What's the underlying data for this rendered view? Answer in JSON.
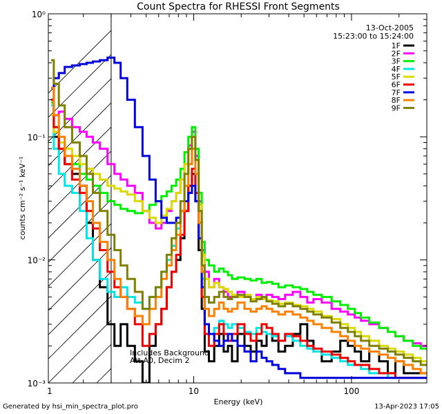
{
  "chart_data": {
    "type": "line",
    "title": "Count Spectra for RHESSI Front Segments",
    "xlabel": "Energy (keV)",
    "ylabel": "counts cm⁻² s⁻¹ keV⁻¹",
    "xscale": "log",
    "yscale": "log",
    "xlim": [
      1.2,
      300
    ],
    "ylim": [
      0.001,
      1
    ],
    "x_tick_labels": [
      "1",
      "10",
      "100"
    ],
    "y_tick_labels": [
      "10⁻³",
      "10⁻²",
      "10⁻¹",
      "10⁰"
    ],
    "date": "13-Oct-2005",
    "time_range": "15:23:00 to 15:24:00",
    "annotation_line1": "Includes Background",
    "annotation_line2": "Att A0, Decim 2",
    "attenuator_cutoff_keV": 3,
    "legend_position": "top-right",
    "x": [
      1.25,
      1.35,
      1.45,
      1.6,
      1.8,
      2.0,
      2.2,
      2.4,
      2.7,
      3.0,
      3.3,
      3.6,
      4.0,
      4.5,
      5.0,
      5.5,
      6.0,
      6.5,
      7.0,
      7.5,
      8.0,
      8.5,
      9.0,
      9.5,
      10.0,
      10.5,
      11.0,
      11.5,
      12.0,
      13.0,
      14.0,
      15.0,
      16.0,
      17.0,
      18.0,
      20.0,
      22.0,
      24.0,
      26.0,
      28.0,
      30.0,
      33.0,
      36.0,
      40.0,
      45.0,
      50.0,
      55.0,
      60.0,
      70.0,
      80.0,
      90.0,
      100.0,
      110.0,
      120.0,
      140.0,
      160.0,
      180.0,
      200.0,
      230.0,
      260.0,
      290.0
    ],
    "series": [
      {
        "name": "1F",
        "color": "#000000",
        "values": [
          0.25,
          0.1,
          0.08,
          0.06,
          0.05,
          0.04,
          0.02,
          0.01,
          0.006,
          0.003,
          0.002,
          0.003,
          0.002,
          0.0015,
          0.001,
          0.002,
          0.003,
          0.004,
          0.006,
          0.008,
          0.01,
          0.015,
          0.025,
          0.04,
          0.05,
          0.03,
          0.012,
          0.004,
          0.0018,
          0.0015,
          0.002,
          0.0025,
          0.0018,
          0.002,
          0.0015,
          0.0025,
          0.002,
          0.0018,
          0.0022,
          0.002,
          0.0025,
          0.0022,
          0.0018,
          0.002,
          0.0025,
          0.003,
          0.0022,
          0.0018,
          0.0015,
          0.0018,
          0.0022,
          0.002,
          0.0018,
          0.0015,
          0.0018,
          0.0015,
          0.0012,
          0.0015,
          0.0012,
          0.0012,
          0.0012
        ]
      },
      {
        "name": "2F",
        "color": "#ff00ff",
        "values": [
          0.2,
          0.15,
          0.16,
          0.14,
          0.12,
          0.11,
          0.1,
          0.09,
          0.08,
          0.06,
          0.05,
          0.045,
          0.04,
          0.035,
          0.025,
          0.02,
          0.018,
          0.02,
          0.025,
          0.03,
          0.035,
          0.045,
          0.06,
          0.085,
          0.11,
          0.07,
          0.03,
          0.012,
          0.008,
          0.006,
          0.007,
          0.006,
          0.0055,
          0.005,
          0.005,
          0.0055,
          0.005,
          0.0048,
          0.0052,
          0.005,
          0.0052,
          0.005,
          0.0048,
          0.0052,
          0.0055,
          0.005,
          0.0045,
          0.0048,
          0.0045,
          0.004,
          0.0038,
          0.0036,
          0.0034,
          0.0032,
          0.003,
          0.0028,
          0.0026,
          0.0024,
          0.0022,
          0.0021,
          0.002
        ]
      },
      {
        "name": "3F",
        "color": "#00ee00",
        "values": [
          0.19,
          0.12,
          0.09,
          0.07,
          0.06,
          0.05,
          0.045,
          0.04,
          0.035,
          0.03,
          0.028,
          0.026,
          0.025,
          0.024,
          0.025,
          0.028,
          0.03,
          0.033,
          0.036,
          0.04,
          0.045,
          0.055,
          0.075,
          0.1,
          0.12,
          0.08,
          0.035,
          0.014,
          0.01,
          0.009,
          0.008,
          0.0085,
          0.008,
          0.0075,
          0.007,
          0.0072,
          0.007,
          0.0068,
          0.007,
          0.0065,
          0.0066,
          0.0064,
          0.006,
          0.0062,
          0.006,
          0.0058,
          0.0055,
          0.0052,
          0.005,
          0.0046,
          0.0043,
          0.004,
          0.0037,
          0.0034,
          0.0031,
          0.0028,
          0.0026,
          0.0024,
          0.0022,
          0.002,
          0.0019
        ]
      },
      {
        "name": "4F",
        "color": "#00e5e5",
        "values": [
          0.18,
          0.08,
          0.05,
          0.04,
          0.035,
          0.025,
          0.015,
          0.01,
          0.007,
          0.0055,
          0.005,
          0.006,
          0.005,
          0.0045,
          0.004,
          0.005,
          0.006,
          0.008,
          0.01,
          0.013,
          0.018,
          0.025,
          0.04,
          0.06,
          0.08,
          0.05,
          0.02,
          0.007,
          0.003,
          0.0025,
          0.0028,
          0.0032,
          0.003,
          0.0028,
          0.003,
          0.0028,
          0.0026,
          0.0025,
          0.0028,
          0.0026,
          0.0025,
          0.0024,
          0.0022,
          0.0024,
          0.0022,
          0.002,
          0.0019,
          0.0018,
          0.0017,
          0.0016,
          0.0015,
          0.0014,
          0.0014,
          0.0013,
          0.0012,
          0.0012,
          0.0011,
          0.0011,
          0.0011,
          0.0011,
          0.0011
        ]
      },
      {
        "name": "5F",
        "color": "#dada00",
        "values": [
          0.15,
          0.11,
          0.09,
          0.08,
          0.07,
          0.06,
          0.055,
          0.05,
          0.045,
          0.04,
          0.038,
          0.036,
          0.034,
          0.03,
          0.025,
          0.022,
          0.02,
          0.023,
          0.026,
          0.03,
          0.035,
          0.045,
          0.06,
          0.08,
          0.1,
          0.065,
          0.028,
          0.011,
          0.007,
          0.006,
          0.0065,
          0.006,
          0.0058,
          0.0055,
          0.0052,
          0.005,
          0.0052,
          0.0048,
          0.005,
          0.0048,
          0.0047,
          0.0046,
          0.0044,
          0.0045,
          0.0043,
          0.0042,
          0.004,
          0.0038,
          0.0035,
          0.0033,
          0.003,
          0.0028,
          0.0026,
          0.0024,
          0.0022,
          0.002,
          0.0019,
          0.0018,
          0.0017,
          0.0016,
          0.0015
        ]
      },
      {
        "name": "6F",
        "color": "#ee0000",
        "values": [
          0.2,
          0.12,
          0.08,
          0.06,
          0.045,
          0.035,
          0.025,
          0.018,
          0.012,
          0.008,
          0.006,
          0.005,
          0.004,
          0.003,
          0.002,
          0.0025,
          0.003,
          0.004,
          0.006,
          0.008,
          0.011,
          0.016,
          0.025,
          0.04,
          0.055,
          0.035,
          0.015,
          0.005,
          0.0025,
          0.002,
          0.0025,
          0.003,
          0.0025,
          0.0022,
          0.0025,
          0.003,
          0.0025,
          0.0022,
          0.0025,
          0.003,
          0.0028,
          0.0025,
          0.0022,
          0.0025,
          0.0024,
          0.0022,
          0.002,
          0.0019,
          0.0018,
          0.0017,
          0.0016,
          0.0015,
          0.0014,
          0.0014,
          0.0013,
          0.0012,
          0.0012,
          0.0011,
          0.0011,
          0.0011,
          0.0011
        ]
      },
      {
        "name": "7F",
        "color": "#0000dd",
        "values": [
          0.25,
          0.3,
          0.33,
          0.37,
          0.38,
          0.39,
          0.4,
          0.41,
          0.42,
          0.44,
          0.4,
          0.3,
          0.2,
          0.12,
          0.07,
          0.045,
          0.03,
          0.022,
          0.02,
          0.02,
          0.022,
          0.025,
          0.03,
          0.035,
          0.04,
          0.03,
          0.015,
          0.006,
          0.003,
          0.0025,
          0.0022,
          0.002,
          0.0022,
          0.0025,
          0.0022,
          0.002,
          0.0018,
          0.0015,
          0.0018,
          0.0016,
          0.0015,
          0.0014,
          0.0013,
          0.0012,
          0.0012,
          0.0011,
          0.0011,
          0.0011,
          0.0011,
          0.0011,
          0.0011,
          0.0011,
          0.0011,
          0.0011,
          0.0011,
          0.0011,
          0.0011,
          0.0011,
          0.0011,
          0.0011,
          0.0011
        ]
      },
      {
        "name": "8F",
        "color": "#ff8000",
        "values": [
          0.25,
          0.15,
          0.1,
          0.07,
          0.055,
          0.04,
          0.03,
          0.02,
          0.014,
          0.01,
          0.007,
          0.005,
          0.004,
          0.0035,
          0.003,
          0.004,
          0.005,
          0.007,
          0.009,
          0.012,
          0.016,
          0.025,
          0.04,
          0.06,
          0.08,
          0.05,
          0.02,
          0.008,
          0.004,
          0.0035,
          0.004,
          0.0045,
          0.004,
          0.0038,
          0.004,
          0.0045,
          0.004,
          0.0038,
          0.004,
          0.0042,
          0.004,
          0.0038,
          0.0036,
          0.0038,
          0.0036,
          0.0034,
          0.0032,
          0.003,
          0.0028,
          0.0026,
          0.0024,
          0.0022,
          0.002,
          0.0019,
          0.0018,
          0.0017,
          0.0016,
          0.0015,
          0.0014,
          0.0013,
          0.0012
        ]
      },
      {
        "name": "9F",
        "color": "#808000",
        "values": [
          0.42,
          0.27,
          0.18,
          0.12,
          0.09,
          0.07,
          0.05,
          0.035,
          0.025,
          0.016,
          0.012,
          0.009,
          0.007,
          0.0055,
          0.004,
          0.005,
          0.006,
          0.008,
          0.011,
          0.015,
          0.02,
          0.03,
          0.05,
          0.08,
          0.1,
          0.065,
          0.025,
          0.009,
          0.005,
          0.0045,
          0.005,
          0.0055,
          0.005,
          0.0048,
          0.005,
          0.0052,
          0.005,
          0.0046,
          0.0048,
          0.005,
          0.0046,
          0.0044,
          0.0042,
          0.0044,
          0.0042,
          0.004,
          0.0038,
          0.0036,
          0.0034,
          0.0031,
          0.0028,
          0.0026,
          0.0024,
          0.0022,
          0.002,
          0.0019,
          0.0018,
          0.0017,
          0.0016,
          0.0015,
          0.0014
        ]
      }
    ]
  },
  "footer": {
    "generated_by": "Generated by hsi_min_spectra_plot.pro",
    "timestamp": "13-Apr-2023 17:05"
  }
}
